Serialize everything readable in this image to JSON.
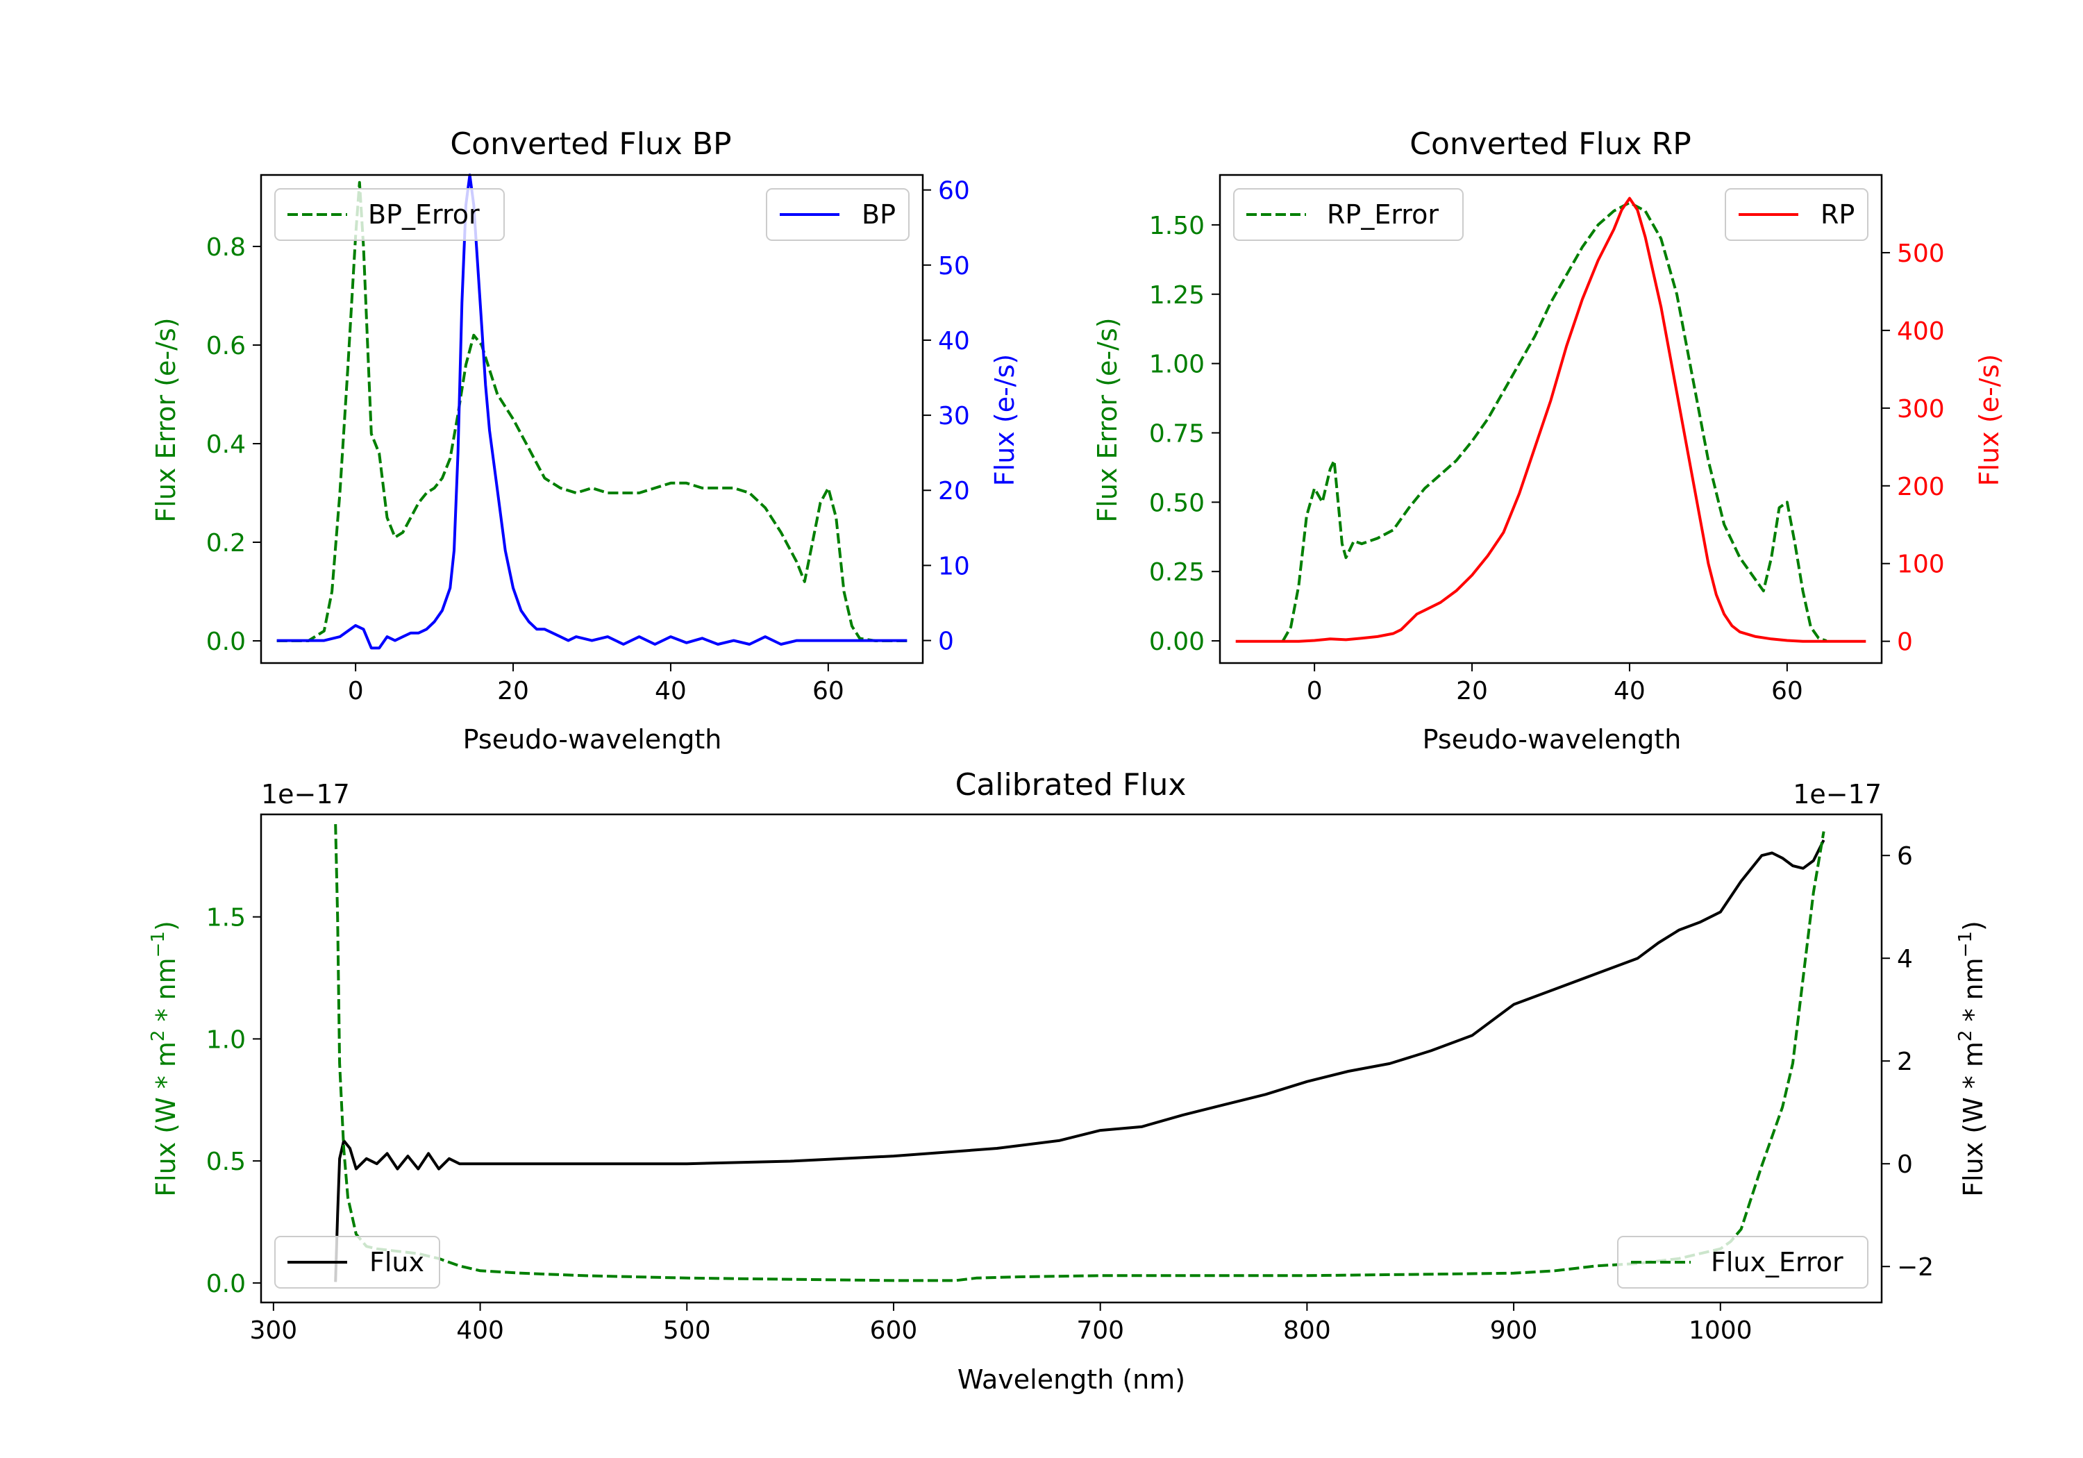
{
  "figure": {
    "bp_title": "Converted Flux BP",
    "rp_title": "Converted Flux RP",
    "cal_title": "Calibrated Flux",
    "pseudo_xlabel": "Pseudo-wavelength",
    "cal_xlabel": "Wavelength (nm)",
    "flux_err_label": "Flux Error (e-/s)",
    "flux_label": "Flux (e-/s)",
    "cal_left_ylabel_main": "Flux (W * m",
    "cal_left_ylabel_tail": " * nm",
    "cal_right_ylabel_main": "Flux (W * m",
    "cal_right_ylabel_tail": " * nm",
    "sup2": "2",
    "supm1": "−1",
    "close_paren": ")",
    "offset_left": "1e−17",
    "offset_right": "1e−17"
  },
  "colors": {
    "green": "#007f00",
    "blue": "#0000ff",
    "red": "#ff0000",
    "black": "#000000"
  },
  "chart_data": [
    {
      "type": "line",
      "title": "Converted Flux BP",
      "xlabel": "Pseudo-wavelength",
      "xlim": [
        -12,
        72
      ],
      "xticks": [
        0,
        20,
        40,
        60
      ],
      "left_axis": {
        "label": "Flux Error (e-/s)",
        "ylim": [
          -0.045,
          0.945
        ],
        "ticks": [
          0.0,
          0.2,
          0.4,
          0.6,
          0.8
        ],
        "tick_labels": [
          "0.0",
          "0.2",
          "0.4",
          "0.6",
          "0.8"
        ],
        "color": "green"
      },
      "right_axis": {
        "label": "Flux (e-/s)",
        "ylim": [
          -3.0,
          62.0
        ],
        "ticks": [
          0,
          10,
          20,
          30,
          40,
          50,
          60
        ],
        "tick_labels": [
          "0",
          "10",
          "20",
          "30",
          "40",
          "50",
          "60"
        ],
        "color": "blue"
      },
      "legend_left": "BP_Error",
      "legend_right": "BP",
      "series": [
        {
          "name": "BP_Error",
          "axis": "left",
          "style": "dashed",
          "color": "green",
          "x": [
            -10,
            -6,
            -4,
            -3,
            -2,
            -1,
            0,
            0.5,
            1,
            2,
            3,
            4,
            5,
            6,
            7,
            8,
            9,
            10,
            11,
            12,
            13,
            14,
            15,
            16,
            17,
            18,
            20,
            22,
            24,
            26,
            28,
            30,
            32,
            34,
            36,
            38,
            40,
            42,
            44,
            46,
            48,
            50,
            52,
            54,
            56,
            57,
            58,
            59,
            60,
            61,
            62,
            63,
            64,
            66,
            70
          ],
          "y": [
            0,
            0,
            0.02,
            0.1,
            0.3,
            0.55,
            0.82,
            0.93,
            0.8,
            0.42,
            0.38,
            0.25,
            0.21,
            0.22,
            0.25,
            0.28,
            0.3,
            0.31,
            0.33,
            0.37,
            0.46,
            0.56,
            0.62,
            0.6,
            0.55,
            0.5,
            0.45,
            0.39,
            0.33,
            0.31,
            0.3,
            0.31,
            0.3,
            0.3,
            0.3,
            0.31,
            0.32,
            0.32,
            0.31,
            0.31,
            0.31,
            0.3,
            0.27,
            0.22,
            0.16,
            0.12,
            0.2,
            0.28,
            0.31,
            0.25,
            0.1,
            0.03,
            0.005,
            0,
            0
          ]
        },
        {
          "name": "BP",
          "axis": "right",
          "style": "solid",
          "color": "blue",
          "x": [
            -10,
            -4,
            -2,
            0,
            1,
            2,
            3,
            4,
            5,
            6,
            7,
            8,
            9,
            10,
            11,
            12,
            12.5,
            13,
            13.5,
            14,
            14.5,
            15,
            15.5,
            16,
            16.5,
            17,
            18,
            19,
            20,
            21,
            22,
            23,
            24,
            25,
            26,
            27,
            28,
            30,
            32,
            34,
            36,
            38,
            40,
            42,
            44,
            46,
            48,
            50,
            52,
            54,
            56,
            60,
            65,
            70
          ],
          "y": [
            0,
            0,
            0.5,
            2,
            1.5,
            -1,
            -1,
            0.5,
            0,
            0.5,
            1,
            1,
            1.5,
            2.5,
            4,
            7,
            12,
            25,
            45,
            58,
            62,
            58,
            50,
            42,
            34,
            28,
            20,
            12,
            7,
            4,
            2.5,
            1.5,
            1.5,
            1,
            0.5,
            0,
            0.5,
            0,
            0.5,
            -0.5,
            0.5,
            -0.5,
            0.5,
            -0.3,
            0.3,
            -0.5,
            0,
            -0.5,
            0.5,
            -0.5,
            0,
            0,
            0,
            0
          ]
        }
      ]
    },
    {
      "type": "line",
      "title": "Converted Flux RP",
      "xlabel": "Pseudo-wavelength",
      "xlim": [
        -12,
        72
      ],
      "xticks": [
        0,
        20,
        40,
        60
      ],
      "left_axis": {
        "label": "Flux Error (e-/s)",
        "ylim": [
          -0.08,
          1.68
        ],
        "ticks": [
          0.0,
          0.25,
          0.5,
          0.75,
          1.0,
          1.25,
          1.5
        ],
        "tick_labels": [
          "0.00",
          "0.25",
          "0.50",
          "0.75",
          "1.00",
          "1.25",
          "1.50"
        ],
        "color": "green"
      },
      "right_axis": {
        "label": "Flux (e-/s)",
        "ylim": [
          -28,
          600
        ],
        "ticks": [
          0,
          100,
          200,
          300,
          400,
          500
        ],
        "tick_labels": [
          "0",
          "100",
          "200",
          "300",
          "400",
          "500"
        ],
        "color": "red"
      },
      "legend_left": "RP_Error",
      "legend_right": "RP",
      "series": [
        {
          "name": "RP_Error",
          "axis": "left",
          "style": "dashed",
          "color": "green",
          "x": [
            -4,
            -3,
            -2,
            -1,
            0,
            1,
            2,
            2.5,
            3,
            3.5,
            4,
            5,
            6,
            8,
            10,
            12,
            14,
            16,
            18,
            20,
            22,
            24,
            26,
            28,
            30,
            32,
            34,
            36,
            38,
            40,
            42,
            44,
            46,
            48,
            50,
            52,
            54,
            56,
            57,
            58,
            59,
            60,
            61,
            62,
            63,
            64,
            65
          ],
          "y": [
            0,
            0.05,
            0.2,
            0.45,
            0.55,
            0.5,
            0.62,
            0.65,
            0.5,
            0.35,
            0.3,
            0.36,
            0.35,
            0.37,
            0.4,
            0.48,
            0.55,
            0.6,
            0.65,
            0.72,
            0.8,
            0.9,
            1.0,
            1.1,
            1.22,
            1.32,
            1.42,
            1.5,
            1.55,
            1.58,
            1.55,
            1.45,
            1.25,
            0.95,
            0.65,
            0.42,
            0.3,
            0.22,
            0.18,
            0.3,
            0.48,
            0.5,
            0.35,
            0.18,
            0.05,
            0.01,
            0
          ]
        },
        {
          "name": "RP",
          "axis": "right",
          "style": "solid",
          "color": "red",
          "x": [
            -10,
            -2,
            0,
            2,
            4,
            6,
            8,
            10,
            11,
            12,
            13,
            14,
            16,
            18,
            20,
            22,
            24,
            26,
            28,
            30,
            32,
            34,
            36,
            38,
            39,
            40,
            41,
            42,
            44,
            46,
            48,
            50,
            51,
            52,
            53,
            54,
            56,
            58,
            60,
            62,
            64,
            66,
            70
          ],
          "y": [
            0,
            0,
            1,
            3,
            2,
            4,
            6,
            10,
            15,
            25,
            35,
            40,
            50,
            65,
            85,
            110,
            140,
            190,
            250,
            310,
            380,
            440,
            490,
            530,
            555,
            570,
            555,
            520,
            430,
            320,
            210,
            100,
            60,
            35,
            20,
            12,
            6,
            3,
            1,
            0,
            0,
            0,
            0
          ]
        }
      ]
    },
    {
      "type": "line",
      "title": "Calibrated Flux",
      "xlabel": "Wavelength (nm)",
      "xlim": [
        294,
        1078
      ],
      "xticks": [
        300,
        400,
        500,
        600,
        700,
        800,
        900,
        1000
      ],
      "left_axis": {
        "label": "Flux (W * m^2 * nm^-1)",
        "scale": "1e-17",
        "ylim": [
          -0.08,
          1.92
        ],
        "ticks": [
          0.0,
          0.5,
          1.0,
          1.5
        ],
        "tick_labels": [
          "0.0",
          "0.5",
          "1.0",
          "1.5"
        ],
        "color": "green"
      },
      "right_axis": {
        "label": "Flux (W * m^2 * nm^-1)",
        "scale": "1e-17",
        "ylim": [
          -2.7,
          6.8
        ],
        "ticks": [
          -2,
          0,
          2,
          4,
          6
        ],
        "tick_labels": [
          "−2",
          "0",
          "2",
          "4",
          "6"
        ],
        "color": "black"
      },
      "legend_left": "Flux",
      "legend_right": "Flux_Error",
      "series": [
        {
          "name": "Flux",
          "axis": "right",
          "style": "solid",
          "color": "black",
          "x": [
            330,
            331,
            332,
            334,
            337,
            340,
            345,
            350,
            355,
            360,
            365,
            370,
            375,
            380,
            385,
            390,
            400,
            420,
            450,
            500,
            550,
            600,
            650,
            680,
            700,
            720,
            740,
            760,
            780,
            800,
            820,
            840,
            860,
            880,
            900,
            920,
            940,
            960,
            970,
            980,
            990,
            1000,
            1010,
            1020,
            1025,
            1030,
            1035,
            1040,
            1045,
            1050
          ],
          "y": [
            -2.3,
            -1.0,
            0.1,
            0.45,
            0.3,
            -0.1,
            0.1,
            0.0,
            0.2,
            -0.1,
            0.15,
            -0.1,
            0.2,
            -0.1,
            0.1,
            0.0,
            0.0,
            0.0,
            0.0,
            0.0,
            0.05,
            0.15,
            0.3,
            0.45,
            0.65,
            0.72,
            0.95,
            1.15,
            1.35,
            1.6,
            1.8,
            1.95,
            2.2,
            2.5,
            3.1,
            3.4,
            3.7,
            4.0,
            4.3,
            4.55,
            4.7,
            4.9,
            5.5,
            6.0,
            6.05,
            5.95,
            5.8,
            5.75,
            5.9,
            6.3
          ]
        },
        {
          "name": "Flux_Error",
          "axis": "left",
          "style": "dashed",
          "color": "green",
          "x": [
            330,
            331,
            332,
            334,
            336,
            340,
            345,
            350,
            360,
            370,
            380,
            390,
            400,
            420,
            450,
            500,
            550,
            600,
            630,
            640,
            660,
            700,
            750,
            800,
            850,
            900,
            920,
            940,
            960,
            980,
            1000,
            1005,
            1010,
            1015,
            1020,
            1025,
            1030,
            1035,
            1040,
            1045,
            1050
          ],
          "y": [
            1.88,
            1.5,
            0.9,
            0.55,
            0.35,
            0.2,
            0.15,
            0.14,
            0.13,
            0.12,
            0.1,
            0.07,
            0.05,
            0.04,
            0.03,
            0.02,
            0.015,
            0.01,
            0.01,
            0.02,
            0.025,
            0.03,
            0.03,
            0.03,
            0.035,
            0.04,
            0.05,
            0.07,
            0.08,
            0.1,
            0.14,
            0.17,
            0.22,
            0.35,
            0.48,
            0.6,
            0.72,
            0.9,
            1.25,
            1.6,
            1.85
          ]
        }
      ]
    }
  ]
}
